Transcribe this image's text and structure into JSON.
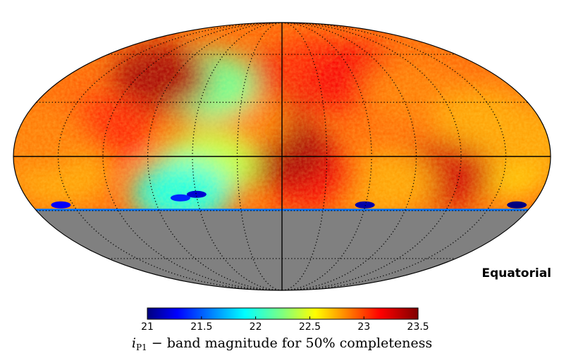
{
  "chart_data": {
    "type": "heatmap",
    "projection": "mollweide",
    "coordinate_system_label": "Equatorial",
    "colormap": "jet",
    "colorbar": {
      "vmin": 21,
      "vmax": 23.5,
      "ticks": [
        "21",
        "21.5",
        "22",
        "22.5",
        "23",
        "23.5"
      ],
      "label_symbol": "i",
      "label_subscript": "P1",
      "label_text": " − band magnitude for 50% completeness"
    },
    "no_data_color": "#808080",
    "coverage_limit_dec": -30,
    "graticule": {
      "ra_step_deg": 30,
      "dec_step_deg": 30,
      "style": "dotted"
    },
    "regions": [
      {
        "ra": 0,
        "dec": 40,
        "value": 23.3
      },
      {
        "ra": -30,
        "dec": 50,
        "value": 23.1
      },
      {
        "ra": -60,
        "dec": 45,
        "value": 23.2
      },
      {
        "ra": -100,
        "dec": 35,
        "value": 22.9
      },
      {
        "ra": -140,
        "dec": 20,
        "value": 22.8
      },
      {
        "ra": -150,
        "dec": -5,
        "value": 22.7
      },
      {
        "ra": -110,
        "dec": -10,
        "value": 23.3
      },
      {
        "ra": -70,
        "dec": -15,
        "value": 22.8
      },
      {
        "ra": -20,
        "dec": -10,
        "value": 23.2
      },
      {
        "ra": 0,
        "dec": 2,
        "value": 23.4
      },
      {
        "ra": 30,
        "dec": 20,
        "value": 22.9
      },
      {
        "ra": 50,
        "dec": -5,
        "value": 22.4
      },
      {
        "ra": 70,
        "dec": -20,
        "value": 22.0
      },
      {
        "ra": 60,
        "dec": 40,
        "value": 22.2
      },
      {
        "ra": 100,
        "dec": 45,
        "value": 23.4
      },
      {
        "ra": 120,
        "dec": 15,
        "value": 23.1
      },
      {
        "ra": 150,
        "dec": -10,
        "value": 22.8
      },
      {
        "ra": 165,
        "dec": 10,
        "value": 22.9
      },
      {
        "ra": -165,
        "dec": 10,
        "value": 22.8
      }
    ],
    "low_depth_features": [
      {
        "ra": 60,
        "dec": -22,
        "value": 21.2
      },
      {
        "ra": 72,
        "dec": -24,
        "value": 21.4
      },
      {
        "ra": -170,
        "dec": -28,
        "value": 21.0
      },
      {
        "ra": -60,
        "dec": -28,
        "value": 21.1
      },
      {
        "ra": 160,
        "dec": -28,
        "value": 21.3
      }
    ]
  }
}
